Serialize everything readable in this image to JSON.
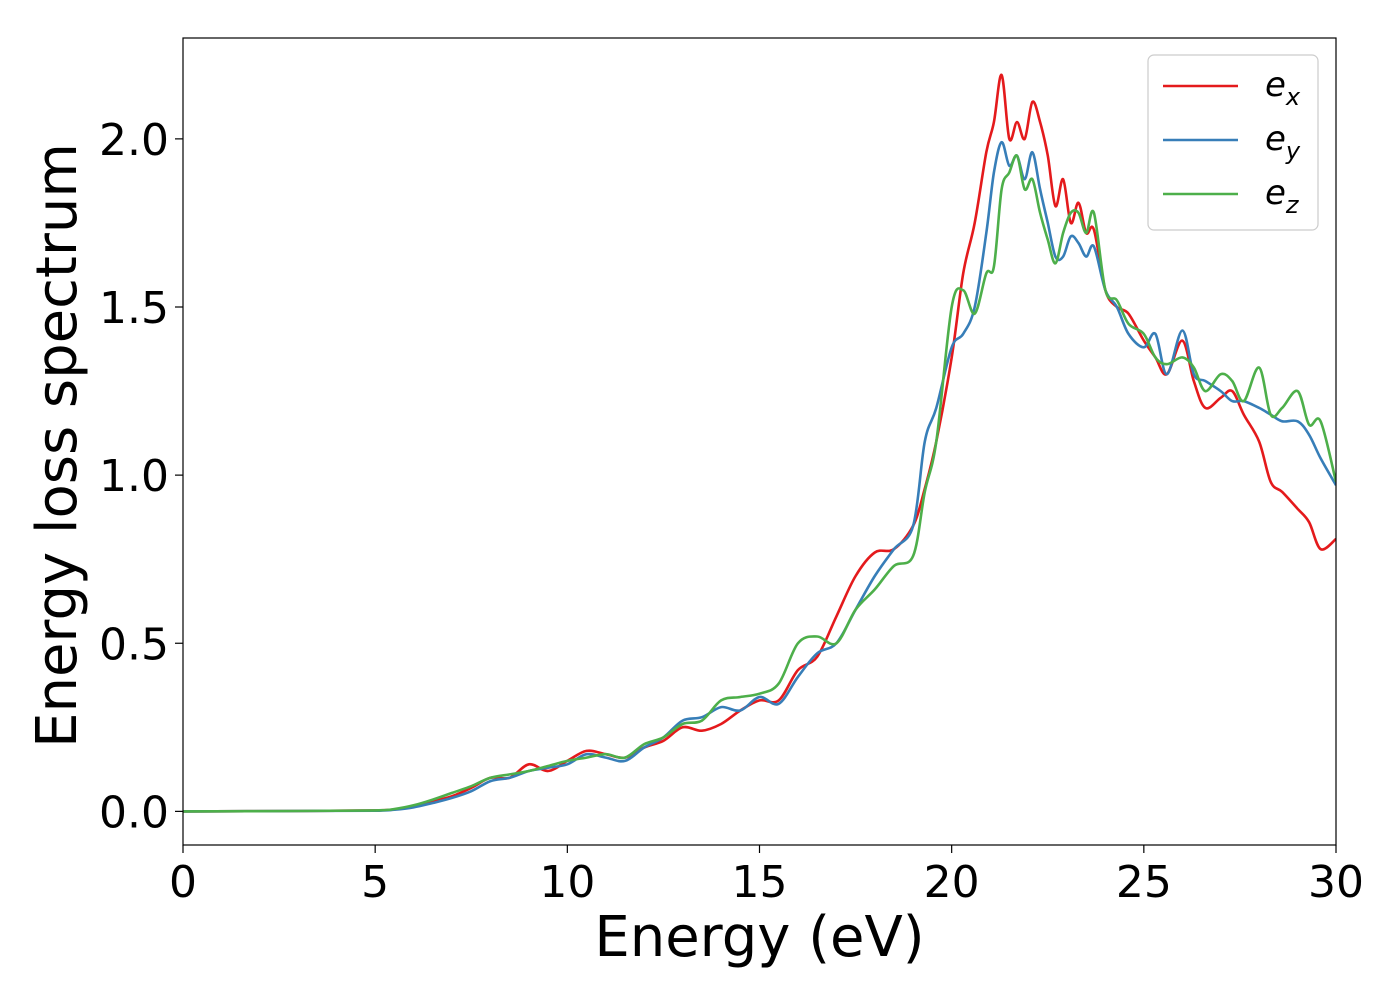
{
  "chart_data": {
    "type": "line",
    "xlabel": "Energy (eV)",
    "ylabel": "Energy loss spectrum",
    "xlim": [
      0,
      30
    ],
    "ylim": [
      -0.1,
      2.3
    ],
    "xticks": [
      0,
      5,
      10,
      15,
      20,
      25,
      30
    ],
    "xtick_labels": [
      "0",
      "5",
      "10",
      "15",
      "20",
      "25",
      "30"
    ],
    "yticks": [
      0.0,
      0.5,
      1.0,
      1.5,
      2.0
    ],
    "ytick_labels": [
      "0.0",
      "0.5",
      "1.0",
      "1.5",
      "2.0"
    ],
    "grid": false,
    "legend_position": "top-right",
    "series": [
      {
        "name": "e",
        "subscript": "x",
        "color": "#e41a1c",
        "x": [
          0,
          3,
          5,
          5.5,
          6,
          6.5,
          7,
          7.5,
          8,
          8.5,
          9,
          9.5,
          10,
          10.5,
          11,
          11.5,
          12,
          12.5,
          13,
          13.5,
          14,
          14.5,
          15,
          15.5,
          16,
          16.5,
          17,
          17.5,
          18,
          18.5,
          19,
          19.3,
          19.6,
          20,
          20.3,
          20.6,
          20.9,
          21.1,
          21.3,
          21.5,
          21.7,
          21.9,
          22.1,
          22.3,
          22.5,
          22.7,
          22.9,
          23.1,
          23.3,
          23.5,
          23.7,
          24,
          24.3,
          24.6,
          25,
          25.3,
          25.6,
          26,
          26.3,
          26.6,
          27,
          27.3,
          27.6,
          28,
          28.3,
          28.6,
          29,
          29.3,
          29.6,
          30
        ],
        "y": [
          0,
          0.001,
          0.003,
          0.006,
          0.015,
          0.03,
          0.045,
          0.07,
          0.1,
          0.1,
          0.14,
          0.12,
          0.15,
          0.18,
          0.17,
          0.16,
          0.19,
          0.21,
          0.25,
          0.24,
          0.26,
          0.3,
          0.33,
          0.33,
          0.42,
          0.46,
          0.58,
          0.7,
          0.77,
          0.78,
          0.85,
          0.96,
          1.1,
          1.35,
          1.6,
          1.75,
          1.96,
          2.05,
          2.19,
          2.0,
          2.05,
          2.0,
          2.11,
          2.05,
          1.95,
          1.8,
          1.88,
          1.75,
          1.81,
          1.72,
          1.73,
          1.55,
          1.5,
          1.48,
          1.4,
          1.35,
          1.3,
          1.4,
          1.28,
          1.2,
          1.23,
          1.25,
          1.18,
          1.1,
          0.98,
          0.95,
          0.9,
          0.86,
          0.78,
          0.81
        ]
      },
      {
        "name": "e",
        "subscript": "y",
        "color": "#377eb8",
        "x": [
          0,
          3,
          5,
          5.5,
          6,
          6.5,
          7,
          7.5,
          8,
          8.5,
          9,
          9.5,
          10,
          10.5,
          11,
          11.5,
          12,
          12.5,
          13,
          13.5,
          14,
          14.5,
          15,
          15.5,
          16,
          16.5,
          17,
          17.5,
          18,
          18.5,
          19,
          19.3,
          19.6,
          20,
          20.3,
          20.6,
          20.9,
          21.1,
          21.3,
          21.5,
          21.7,
          21.9,
          22.1,
          22.3,
          22.5,
          22.7,
          22.9,
          23.1,
          23.3,
          23.5,
          23.7,
          24,
          24.3,
          24.6,
          25,
          25.3,
          25.6,
          26,
          26.3,
          26.6,
          27,
          27.3,
          27.6,
          28,
          28.3,
          28.6,
          29,
          29.3,
          29.6,
          30
        ],
        "y": [
          0,
          0.001,
          0.002,
          0.005,
          0.012,
          0.025,
          0.04,
          0.06,
          0.09,
          0.1,
          0.12,
          0.13,
          0.14,
          0.17,
          0.16,
          0.15,
          0.19,
          0.22,
          0.27,
          0.28,
          0.31,
          0.3,
          0.34,
          0.32,
          0.4,
          0.47,
          0.5,
          0.6,
          0.7,
          0.78,
          0.85,
          1.1,
          1.2,
          1.38,
          1.42,
          1.5,
          1.72,
          1.9,
          1.99,
          1.92,
          1.95,
          1.88,
          1.96,
          1.85,
          1.75,
          1.65,
          1.65,
          1.71,
          1.69,
          1.65,
          1.68,
          1.55,
          1.5,
          1.42,
          1.38,
          1.42,
          1.3,
          1.43,
          1.3,
          1.28,
          1.25,
          1.22,
          1.22,
          1.2,
          1.18,
          1.16,
          1.16,
          1.12,
          1.05,
          0.97
        ]
      },
      {
        "name": "e",
        "subscript": "z",
        "color": "#4daf4a",
        "x": [
          0,
          3,
          5,
          5.5,
          6,
          6.5,
          7,
          7.5,
          8,
          8.5,
          9,
          9.5,
          10,
          10.5,
          11,
          11.5,
          12,
          12.5,
          13,
          13.5,
          14,
          14.5,
          15,
          15.5,
          16,
          16.5,
          17,
          17.5,
          18,
          18.5,
          19,
          19.3,
          19.6,
          20,
          20.3,
          20.6,
          20.9,
          21.1,
          21.3,
          21.5,
          21.7,
          21.9,
          22.1,
          22.3,
          22.5,
          22.7,
          22.9,
          23.1,
          23.3,
          23.5,
          23.7,
          24,
          24.3,
          24.6,
          25,
          25.3,
          25.6,
          26,
          26.3,
          26.6,
          27,
          27.3,
          27.6,
          28,
          28.3,
          28.6,
          29,
          29.3,
          29.6,
          30
        ],
        "y": [
          0,
          0.001,
          0.003,
          0.007,
          0.018,
          0.035,
          0.055,
          0.075,
          0.1,
          0.11,
          0.12,
          0.135,
          0.15,
          0.16,
          0.17,
          0.16,
          0.2,
          0.22,
          0.26,
          0.27,
          0.33,
          0.34,
          0.35,
          0.38,
          0.5,
          0.52,
          0.5,
          0.6,
          0.66,
          0.73,
          0.76,
          0.95,
          1.1,
          1.5,
          1.55,
          1.48,
          1.6,
          1.62,
          1.85,
          1.9,
          1.95,
          1.85,
          1.88,
          1.78,
          1.7,
          1.63,
          1.72,
          1.78,
          1.78,
          1.72,
          1.78,
          1.55,
          1.52,
          1.45,
          1.42,
          1.35,
          1.33,
          1.35,
          1.32,
          1.25,
          1.3,
          1.28,
          1.22,
          1.32,
          1.18,
          1.2,
          1.25,
          1.15,
          1.16,
          0.98
        ]
      }
    ]
  }
}
